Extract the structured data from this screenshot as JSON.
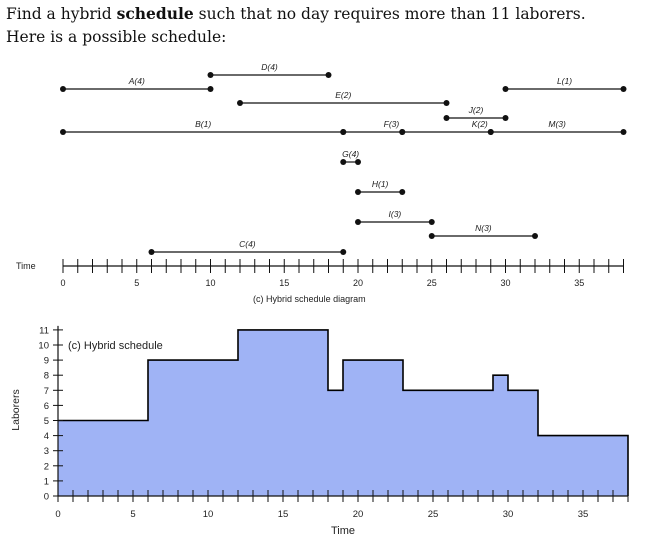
{
  "intro": {
    "line1_before": "Find a hybrid ",
    "line1_bold": "schedule",
    "line1_after": " such that no day requires more than 11 laborers.",
    "line2": "Here is a possible schedule:"
  },
  "chart_data": [
    {
      "type": "gantt",
      "title": "(c) Hybrid schedule diagram",
      "xlabel": "Time",
      "xlim": [
        0,
        38
      ],
      "tick_labels": [
        "0",
        "5",
        "10",
        "15",
        "20",
        "25",
        "30",
        "35"
      ],
      "tasks": [
        {
          "label": "A(4)",
          "start": 0,
          "end": 10
        },
        {
          "label": "D(4)",
          "start": 10,
          "end": 18
        },
        {
          "label": "E(2)",
          "start": 12,
          "end": 26
        },
        {
          "label": "L(1)",
          "start": 30,
          "end": 38
        },
        {
          "label": "J(2)",
          "start": 26,
          "end": 30
        },
        {
          "label": "B(1)",
          "start": 0,
          "end": 19
        },
        {
          "label": "F(3)",
          "start": 19,
          "end": 23
        },
        {
          "label": "K(2)",
          "start": 23,
          "end": 29
        },
        {
          "label": "M(3)",
          "start": 29,
          "end": 38
        },
        {
          "label": "G(4)",
          "start": 19,
          "end": 20
        },
        {
          "label": "H(1)",
          "start": 20,
          "end": 23
        },
        {
          "label": "I(3)",
          "start": 20,
          "end": 25
        },
        {
          "label": "N(3)",
          "start": 25,
          "end": 32
        },
        {
          "label": "C(4)",
          "start": 6,
          "end": 19
        }
      ]
    },
    {
      "type": "area",
      "title": "(c) Hybrid schedule",
      "xlabel": "Time",
      "ylabel": "Laborers",
      "xlim": [
        0,
        38
      ],
      "ylim": [
        0,
        11
      ],
      "x_tick_labels": [
        "0",
        "5",
        "10",
        "15",
        "20",
        "25",
        "30",
        "35"
      ],
      "y_tick_labels": [
        "0",
        "1",
        "2",
        "3",
        "4",
        "5",
        "6",
        "7",
        "8",
        "9",
        "10",
        "11"
      ],
      "step_points": [
        [
          0,
          5
        ],
        [
          6,
          5
        ],
        [
          6,
          9
        ],
        [
          12,
          9
        ],
        [
          12,
          11
        ],
        [
          18,
          11
        ],
        [
          18,
          7
        ],
        [
          19,
          7
        ],
        [
          19,
          9
        ],
        [
          23,
          9
        ],
        [
          23,
          7
        ],
        [
          29,
          7
        ],
        [
          29,
          8
        ],
        [
          30,
          8
        ],
        [
          30,
          7
        ],
        [
          32,
          7
        ],
        [
          32,
          4
        ],
        [
          38,
          4
        ],
        [
          38,
          0
        ]
      ],
      "fill_color": "#9fb3f5",
      "line_color": "#000000"
    }
  ]
}
